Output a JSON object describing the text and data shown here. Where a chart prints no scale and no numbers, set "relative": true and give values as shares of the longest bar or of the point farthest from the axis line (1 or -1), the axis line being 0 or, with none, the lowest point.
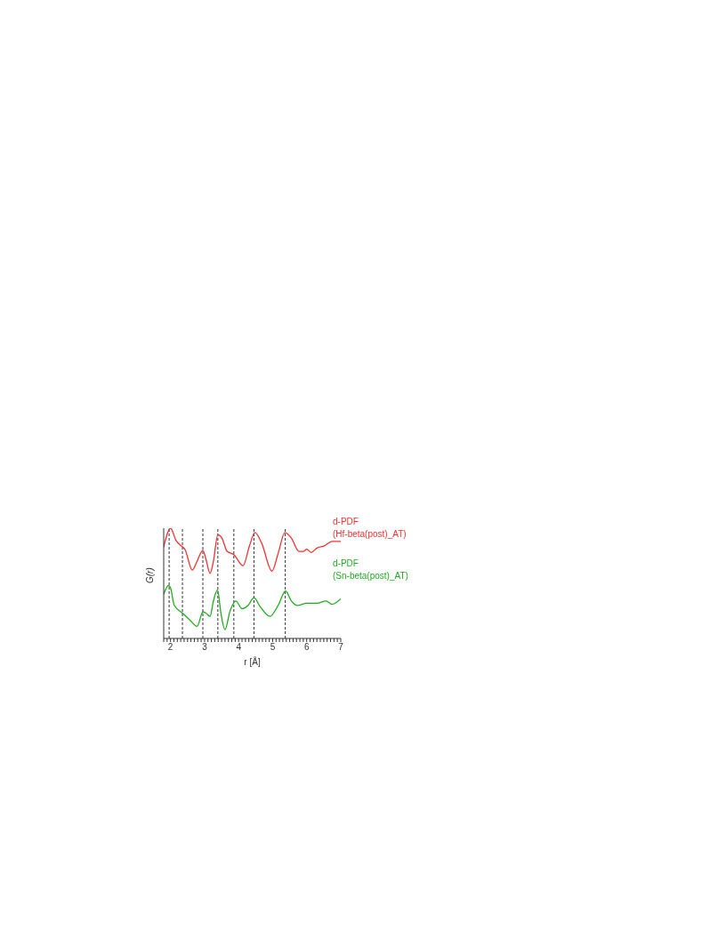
{
  "chart_data": {
    "type": "line",
    "relative": true,
    "xlabel": "r [Å]",
    "ylabel": "G(r)",
    "xlim": [
      1.8,
      7
    ],
    "xticks": [
      {
        "value": 1.8,
        "label": null
      },
      {
        "value": 1.9,
        "label": null
      },
      2,
      {
        "value": 2.1,
        "label": null
      },
      {
        "value": 2.2,
        "label": null
      },
      {
        "value": 2.3,
        "label": null
      },
      {
        "value": 2.4,
        "label": null
      },
      {
        "value": 2.5,
        "label": null
      },
      {
        "value": 2.6,
        "label": null
      },
      {
        "value": 2.7,
        "label": null
      },
      {
        "value": 2.8,
        "label": null
      },
      {
        "value": 2.9,
        "label": null
      },
      3,
      {
        "value": 3.1,
        "label": null
      },
      {
        "value": 3.2,
        "label": null
      },
      {
        "value": 3.3,
        "label": null
      },
      {
        "value": 3.4,
        "label": null
      },
      {
        "value": 3.5,
        "label": null
      },
      {
        "value": 3.6,
        "label": null
      },
      {
        "value": 3.7,
        "label": null
      },
      {
        "value": 3.8,
        "label": null
      },
      {
        "value": 3.9,
        "label": null
      },
      4,
      {
        "value": 4.1,
        "label": null
      },
      {
        "value": 4.2,
        "label": null
      },
      {
        "value": 4.3,
        "label": null
      },
      {
        "value": 4.4,
        "label": null
      },
      {
        "value": 4.5,
        "label": null
      },
      {
        "value": 4.6,
        "label": null
      },
      {
        "value": 4.7,
        "label": null
      },
      {
        "value": 4.8,
        "label": null
      },
      {
        "value": 4.9,
        "label": null
      },
      5,
      {
        "value": 5.1,
        "label": null
      },
      {
        "value": 5.2,
        "label": null
      },
      {
        "value": 5.3,
        "label": null
      },
      {
        "value": 5.4,
        "label": null
      },
      {
        "value": 5.5,
        "label": null
      },
      {
        "value": 5.6,
        "label": null
      },
      {
        "value": 5.7,
        "label": null
      },
      {
        "value": 5.8,
        "label": null
      },
      {
        "value": 5.9,
        "label": null
      },
      6,
      {
        "value": 6.1,
        "label": null
      },
      {
        "value": 6.2,
        "label": null
      },
      {
        "value": 6.3,
        "label": null
      },
      {
        "value": 6.4,
        "label": null
      },
      {
        "value": 6.5,
        "label": null
      },
      {
        "value": 6.6,
        "label": null
      },
      {
        "value": 6.7,
        "label": null
      },
      {
        "value": 6.8,
        "label": null
      },
      {
        "value": 6.9,
        "label": null
      },
      7
    ],
    "marker": "none",
    "line_style": "solid",
    "grid": false,
    "legend": false,
    "series": [
      {
        "name": "d-PDF (Hf-beta(post)_AT)",
        "color": "#ee3333",
        "x": [
          1.8,
          2.0,
          2.16,
          2.35,
          2.42,
          2.64,
          2.78,
          2.95,
          3.04,
          3.16,
          3.26,
          3.39,
          3.51,
          3.66,
          3.86,
          4.13,
          4.32,
          4.48,
          4.67,
          4.98,
          5.16,
          5.36,
          5.55,
          5.77,
          5.91,
          6.0,
          6.13,
          6.3,
          6.52,
          6.74,
          7.0
        ],
        "values": [
          0.83,
          1,
          0.89,
          0.83,
          0.81,
          0.62,
          0.7,
          0.8,
          0.72,
          0.59,
          0.7,
          0.94,
          0.91,
          0.79,
          0.76,
          0.66,
          0.84,
          0.96,
          0.87,
          0.61,
          0.77,
          0.96,
          0.91,
          0.79,
          0.79,
          0.81,
          0.78,
          0.82,
          0.84,
          0.88,
          0.88
        ]
      },
      {
        "name": "d-PDF (Sn-beta(post)_AT)",
        "color": "#22aa22",
        "x": [
          1.8,
          1.94,
          2.0,
          2.11,
          2.35,
          2.56,
          2.78,
          2.95,
          3.04,
          3.16,
          3.26,
          3.38,
          3.48,
          3.6,
          3.75,
          3.92,
          4.1,
          4.28,
          4.45,
          4.63,
          4.92,
          5.16,
          5.38,
          5.55,
          5.73,
          6.0,
          6.3,
          6.57,
          6.74,
          7.0
        ],
        "values": [
          0.4,
          0.48,
          0.46,
          0.3,
          0.23,
          0.17,
          0.11,
          0.24,
          0.23,
          0.2,
          0.34,
          0.44,
          0.23,
          0.08,
          0.25,
          0.34,
          0.27,
          0.3,
          0.37,
          0.29,
          0.2,
          0.3,
          0.43,
          0.34,
          0.3,
          0.32,
          0.32,
          0.34,
          0.31,
          0.36
        ]
      }
    ],
    "ref_lines": [
      {
        "axis": "x",
        "value": 1.96,
        "color": "#333333",
        "line_style": "dashed"
      },
      {
        "axis": "x",
        "value": 2.35,
        "color": "#333333",
        "line_style": "dashed"
      },
      {
        "axis": "x",
        "value": 2.95,
        "color": "#333333",
        "line_style": "dashed"
      },
      {
        "axis": "x",
        "value": 3.39,
        "color": "#333333",
        "line_style": "dashed"
      },
      {
        "axis": "x",
        "value": 3.86,
        "color": "#333333",
        "line_style": "dashed"
      },
      {
        "axis": "x",
        "value": 4.45,
        "color": "#333333",
        "line_style": "dashed"
      },
      {
        "axis": "x",
        "value": 5.37,
        "color": "#333333",
        "line_style": "dashed"
      }
    ]
  }
}
